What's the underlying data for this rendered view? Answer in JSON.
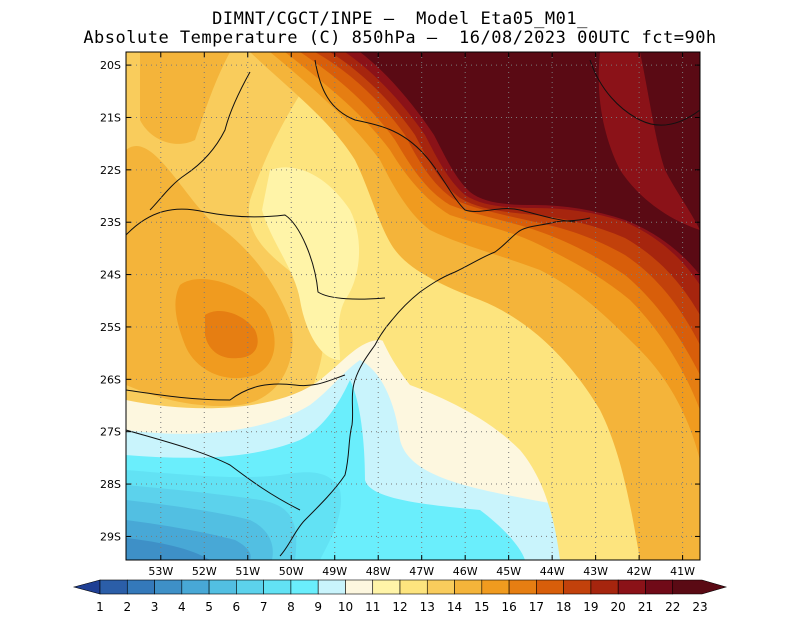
{
  "header": {
    "line1": "DIMNT/CGCT/INPE –  Model Eta05_M01_",
    "line2": "Absolute Temperature (C) 850hPa –  16/08/2023 00UTC fct=90h"
  },
  "map": {
    "lon_range": [
      -53.8,
      -40.6
    ],
    "lat_range": [
      -29.45,
      -19.75
    ],
    "lon_ticks": [
      {
        "value": -53,
        "label": "53W"
      },
      {
        "value": -52,
        "label": "52W"
      },
      {
        "value": -51,
        "label": "51W"
      },
      {
        "value": -50,
        "label": "50W"
      },
      {
        "value": -49,
        "label": "49W"
      },
      {
        "value": -48,
        "label": "48W"
      },
      {
        "value": -47,
        "label": "47W"
      },
      {
        "value": -46,
        "label": "46W"
      },
      {
        "value": -45,
        "label": "45W"
      },
      {
        "value": -44,
        "label": "44W"
      },
      {
        "value": -43,
        "label": "43W"
      },
      {
        "value": -42,
        "label": "42W"
      },
      {
        "value": -41,
        "label": "41W"
      }
    ],
    "lat_ticks": [
      {
        "value": -20,
        "label": "20S"
      },
      {
        "value": -21,
        "label": "21S"
      },
      {
        "value": -22,
        "label": "22S"
      },
      {
        "value": -23,
        "label": "23S"
      },
      {
        "value": -24,
        "label": "24S"
      },
      {
        "value": -25,
        "label": "25S"
      },
      {
        "value": -26,
        "label": "26S"
      },
      {
        "value": -27,
        "label": "27S"
      },
      {
        "value": -28,
        "label": "28S"
      },
      {
        "value": -29,
        "label": "29S"
      }
    ],
    "grid": "dotted",
    "colors": [
      "#1f3f94",
      "#2b5ea8",
      "#3479ba",
      "#3e90c7",
      "#48a8d6",
      "#52bfe2",
      "#5cd2ec",
      "#62e2f4",
      "#6aeefc",
      "#c9f4fc",
      "#fdf7df",
      "#fff4a8",
      "#fde47e",
      "#f9cc5c",
      "#f4b43a",
      "#f09b1f",
      "#e67e12",
      "#d85e0a",
      "#c2410b",
      "#a6250e",
      "#8b1218",
      "#700a18",
      "#5a0a14"
    ],
    "colorbar_labels": [
      "1",
      "2",
      "3",
      "4",
      "5",
      "6",
      "7",
      "8",
      "9",
      "10",
      "11",
      "12",
      "13",
      "14",
      "15",
      "16",
      "17",
      "18",
      "19",
      "20",
      "21",
      "22",
      "23"
    ]
  }
}
